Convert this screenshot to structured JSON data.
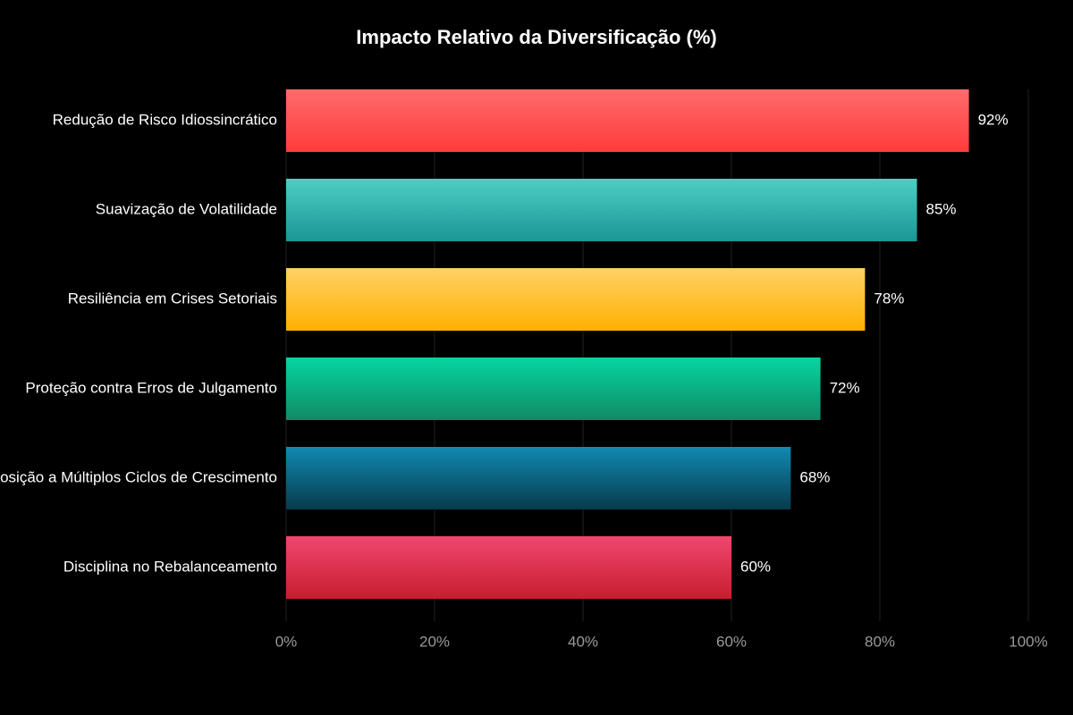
{
  "chart_data": {
    "type": "bar",
    "orientation": "horizontal",
    "title": "Impacto Relativo da Diversificação (%)",
    "categories": [
      "Redução de Risco Idiossincrático",
      "Suavização de Volatilidade",
      "Resiliência em Crises Setoriais",
      "Proteção contra Erros de Julgamento",
      "Exposição a Múltiplos Ciclos de Crescimento",
      "Disciplina no Rebalanceamento"
    ],
    "values": [
      92,
      85,
      78,
      72,
      68,
      60
    ],
    "value_labels": [
      "92%",
      "85%",
      "78%",
      "72%",
      "68%",
      "60%"
    ],
    "gradients": [
      [
        "#ff6b6b",
        "#ff3b3b"
      ],
      [
        "#4ecdc4",
        "#1a9696"
      ],
      [
        "#ffd166",
        "#ffb000"
      ],
      [
        "#06d6a0",
        "#118a66"
      ],
      [
        "#118ab2",
        "#073b4c"
      ],
      [
        "#ef476f",
        "#c81d2e"
      ]
    ],
    "xlim": [
      0,
      100
    ],
    "xticks": [
      {
        "value": 0,
        "label": "0%"
      },
      {
        "value": 20,
        "label": "20%"
      },
      {
        "value": 40,
        "label": "40%"
      },
      {
        "value": 60,
        "label": "60%"
      },
      {
        "value": 80,
        "label": "80%"
      },
      {
        "value": 100,
        "label": "100%"
      }
    ],
    "grid": true
  }
}
